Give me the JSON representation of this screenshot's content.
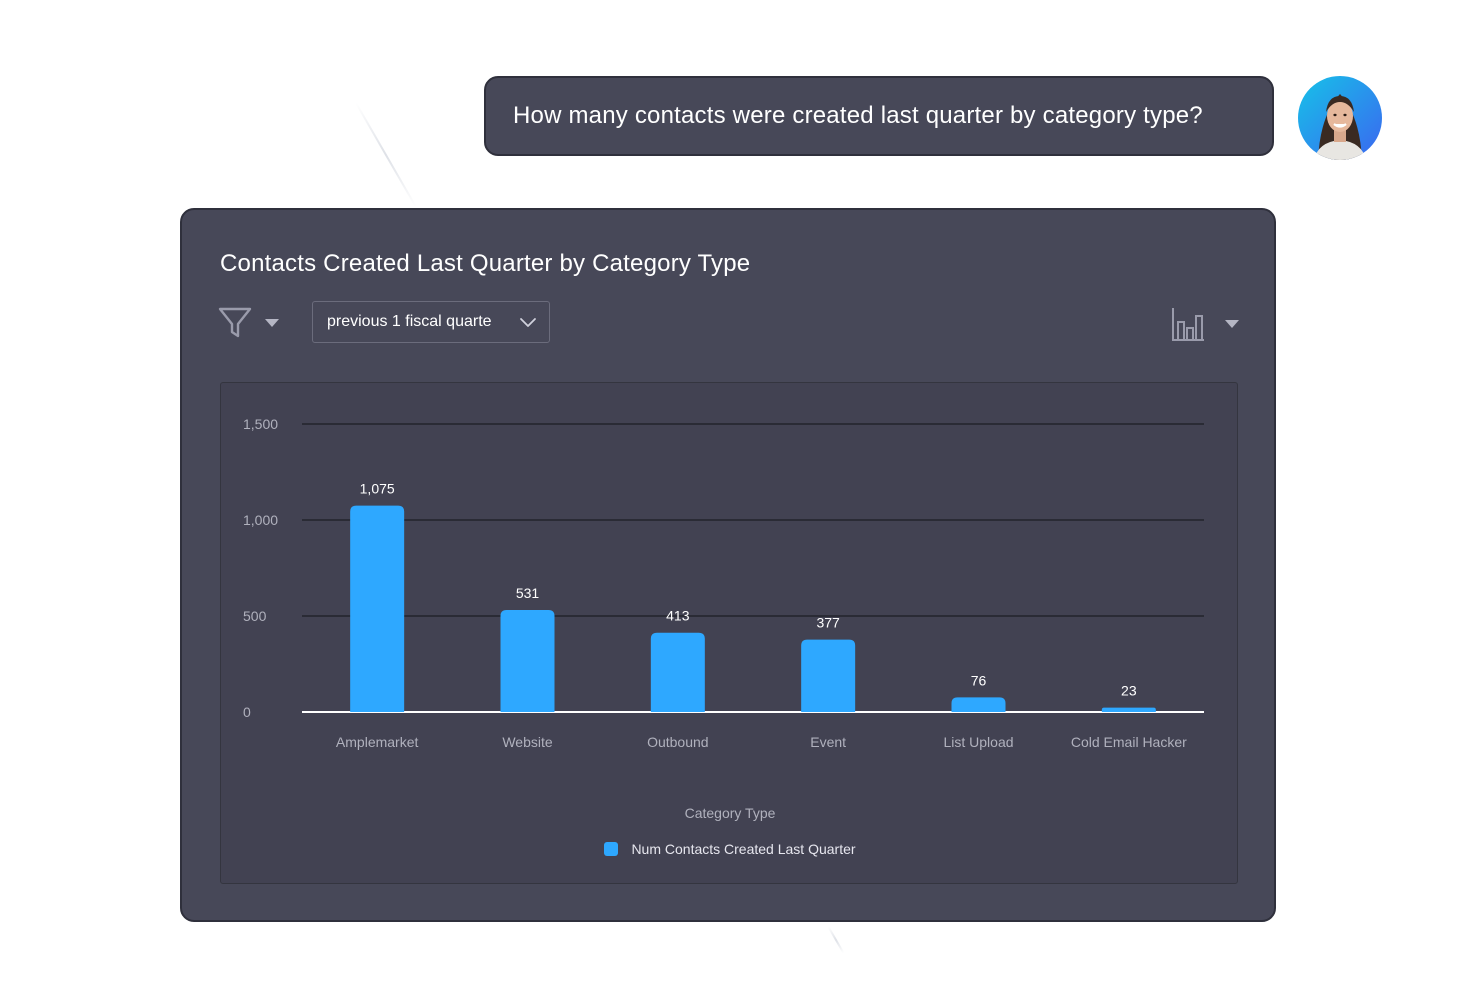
{
  "chat": {
    "question": "How many contacts were created last quarter by category type?"
  },
  "card": {
    "title": "Contacts Created Last Quarter by Category Type",
    "period_value": "previous 1 fiscal quarte"
  },
  "icons": {
    "filter": "filter-funnel-icon",
    "chart_type": "bar-chart-icon",
    "dropdown": "caret-down-icon",
    "chevron": "chevron-down-icon"
  },
  "colors": {
    "accent": "#2ea8ff",
    "card_bg": "#474858",
    "panel_bg": "#424252"
  },
  "chart_data": {
    "type": "bar",
    "categories": [
      "Amplemarket",
      "Website",
      "Outbound",
      "Event",
      "List Upload",
      "Cold Email Hacker"
    ],
    "series": [
      {
        "name": "Num Contacts Created Last Quarter",
        "values": [
          1075,
          531,
          413,
          377,
          76,
          23
        ]
      }
    ],
    "value_labels": [
      "1,075",
      "531",
      "413",
      "377",
      "76",
      "23"
    ],
    "y_ticks": [
      0,
      500,
      1000,
      1500
    ],
    "y_tick_labels": [
      "0",
      "500",
      "1,000",
      "1,500"
    ],
    "xlabel": "Category Type",
    "ylabel": "",
    "ylim": [
      0,
      1500
    ],
    "grid": true,
    "legend_position": "bottom"
  }
}
